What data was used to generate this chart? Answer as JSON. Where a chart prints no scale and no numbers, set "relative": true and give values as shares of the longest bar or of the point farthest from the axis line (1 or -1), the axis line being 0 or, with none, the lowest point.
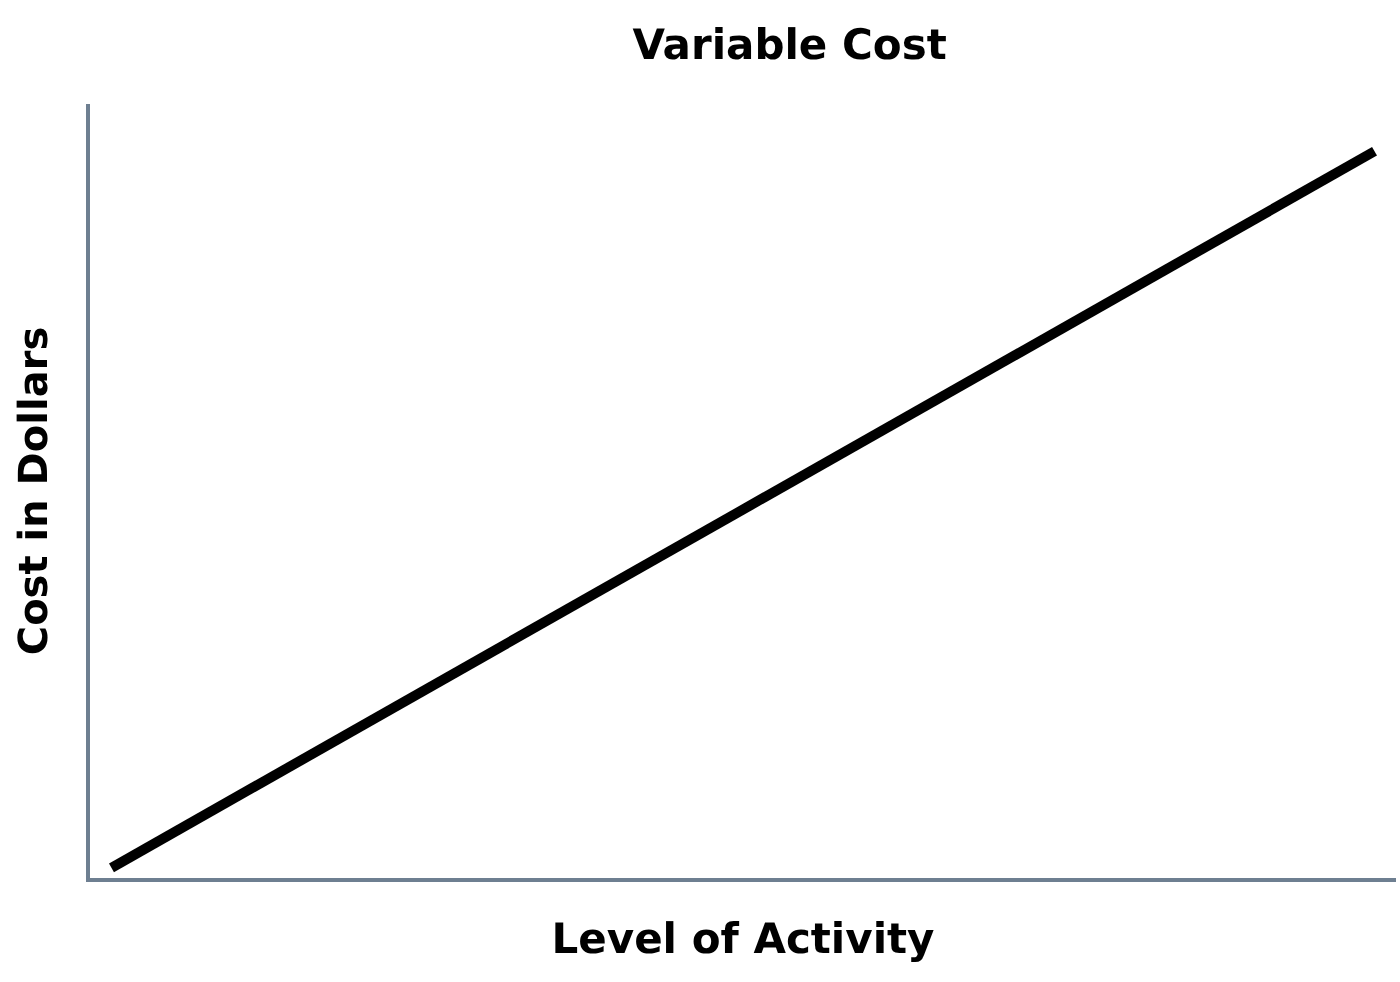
{
  "chart_data": {
    "type": "line",
    "title": "Variable Cost",
    "xlabel": "Level of Activity",
    "ylabel": "Cost in Dollars",
    "categories": [
      null,
      null
    ],
    "values": [
      0.014,
      1
    ],
    "color": "#000000",
    "relative": true,
    "line_style": "solid",
    "tick_labels": false
  }
}
